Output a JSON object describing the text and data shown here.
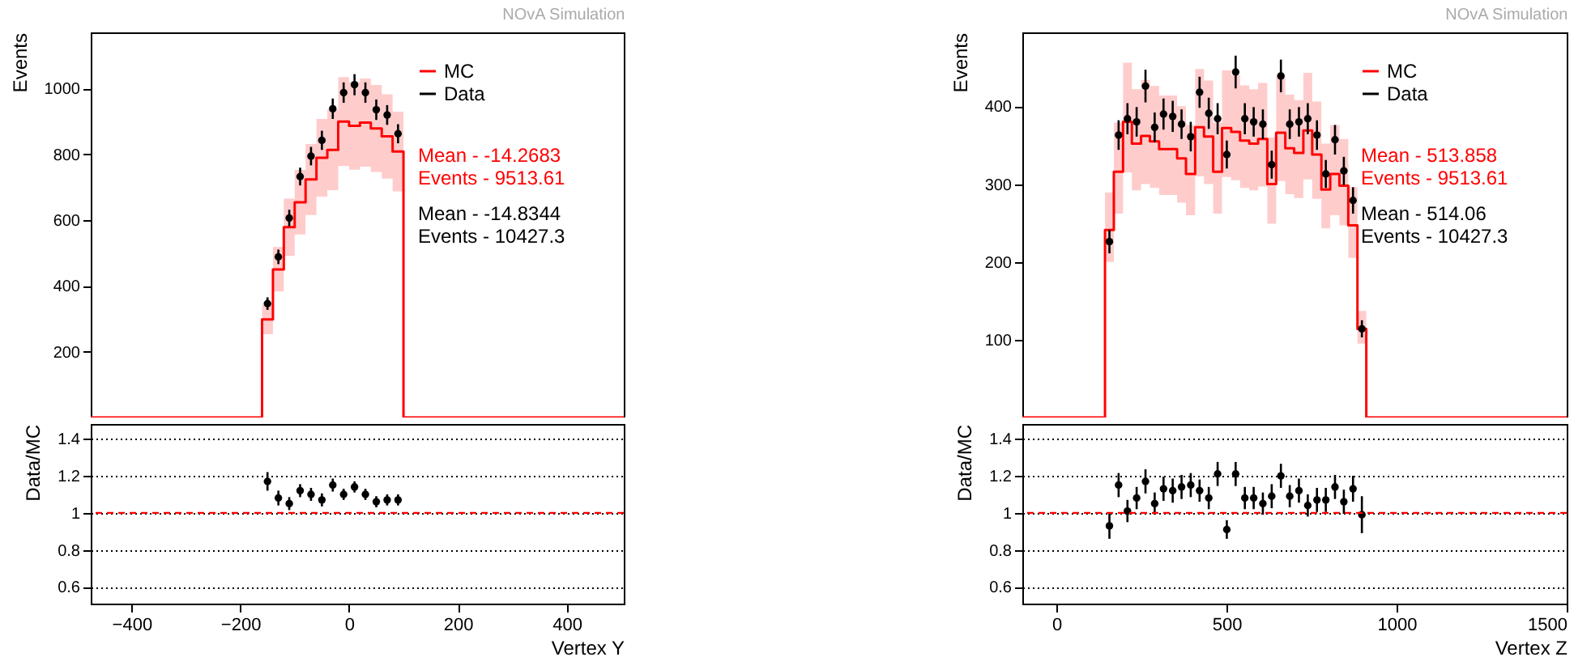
{
  "chart_data": [
    {
      "type": "step",
      "title": "NOvA Simulation",
      "ylabel": "Events",
      "xlim": [
        -475,
        505
      ],
      "xticks": [
        -400,
        -200,
        0,
        200,
        400
      ],
      "ylim": [
        0,
        1170
      ],
      "yticks": [
        200,
        400,
        600,
        800,
        1000
      ],
      "tick_labels": "y",
      "legend": "top right",
      "annotations": [
        "Mean - -14.2683",
        "Events - 9513.61",
        "Mean - -14.8344",
        "Events - 10427.3"
      ],
      "series": [
        {
          "name": "MC",
          "color": "#ff0000",
          "x": [
            -475,
            -160,
            -140,
            -120,
            -100,
            -80,
            -60,
            -40,
            -20,
            0,
            20,
            40,
            60,
            80,
            100,
            505
          ],
          "values": [
            0,
            298,
            450,
            578,
            654,
            723,
            789,
            813,
            899,
            886,
            896,
            878,
            854,
            808,
            0,
            0
          ],
          "lower": [
            0,
            253,
            383,
            491,
            556,
            615,
            671,
            691,
            764,
            753,
            762,
            746,
            726,
            687,
            0,
            0
          ],
          "upper": [
            0,
            343,
            518,
            665,
            752,
            831,
            907,
            935,
            1034,
            1019,
            1030,
            1010,
            982,
            929,
            0,
            0
          ]
        },
        {
          "name": "Data",
          "type": "scatter",
          "color": "#000000",
          "marker": "circle",
          "x": [
            -150,
            -130,
            -110,
            -90,
            -70,
            -50,
            -30,
            -10,
            10,
            30,
            50,
            70,
            90
          ],
          "values": [
            346,
            488,
            606,
            732,
            794,
            842,
            938,
            987,
            1011,
            987,
            935,
            919,
            862
          ],
          "errors": [
            19,
            22,
            25,
            27,
            28,
            29,
            31,
            31,
            32,
            31,
            31,
            30,
            29
          ]
        }
      ]
    },
    {
      "type": "scatter",
      "xlabel": "Vertex Y",
      "ylabel": "Data/MC",
      "xlim": [
        -475,
        505
      ],
      "xticks": [
        -400,
        -200,
        0,
        200,
        400
      ],
      "ylim": [
        0.51,
        1.48
      ],
      "yticks": [
        0.6,
        0.8,
        1,
        1.2,
        1.4
      ],
      "grid": "y",
      "ref_lines": [
        {
          "axis": "y",
          "value": 1,
          "color": "#ff0000",
          "line_style": "dashed"
        }
      ],
      "series": [
        {
          "color": "#000000",
          "marker": "circle",
          "x": [
            -150,
            -130,
            -110,
            -90,
            -70,
            -50,
            -30,
            -10,
            10,
            30,
            50,
            70,
            90
          ],
          "values": [
            1.17,
            1.08,
            1.05,
            1.12,
            1.1,
            1.07,
            1.15,
            1.1,
            1.14,
            1.1,
            1.06,
            1.07,
            1.07
          ],
          "errors": [
            0.05,
            0.04,
            0.035,
            0.035,
            0.035,
            0.035,
            0.035,
            0.03,
            0.03,
            0.03,
            0.03,
            0.03,
            0.03
          ]
        }
      ]
    },
    {
      "type": "step",
      "title": "NOvA Simulation",
      "ylabel": "Events",
      "xlim": [
        -100,
        1500
      ],
      "xticks": [
        0,
        500,
        1000,
        1500
      ],
      "ylim": [
        0,
        495
      ],
      "yticks": [
        100,
        200,
        300,
        400
      ],
      "tick_labels": "y",
      "legend": "top right",
      "annotations": [
        "Mean - 513.858",
        "Events - 9513.61",
        "Mean - 514.06",
        "Events - 10427.3"
      ],
      "series": [
        {
          "name": "MC",
          "color": "#ff0000",
          "x": [
            -100,
            143,
            169,
            196,
            222,
            249,
            275,
            302,
            328,
            355,
            381,
            408,
            434,
            461,
            487,
            514,
            540,
            567,
            593,
            620,
            646,
            673,
            699,
            726,
            752,
            779,
            805,
            832,
            858,
            885,
            911,
            1500
          ],
          "values": [
            0,
            241,
            316,
            380,
            352,
            362,
            355,
            345,
            345,
            333,
            313,
            373,
            361,
            316,
            372,
            367,
            356,
            352,
            358,
            300,
            366,
            346,
            340,
            369,
            338,
            293,
            313,
            298,
            247,
            114,
            0,
            0
          ],
          "lower": [
            0,
            200,
            262,
            315,
            292,
            300,
            295,
            286,
            286,
            276,
            260,
            310,
            300,
            262,
            309,
            305,
            295,
            292,
            297,
            249,
            304,
            287,
            282,
            306,
            281,
            243,
            260,
            247,
            205,
            95,
            0,
            0
          ],
          "upper": [
            0,
            289,
            379,
            456,
            422,
            434,
            426,
            414,
            414,
            400,
            376,
            448,
            433,
            379,
            446,
            440,
            427,
            422,
            430,
            360,
            439,
            415,
            408,
            443,
            406,
            352,
            376,
            358,
            296,
            137,
            0,
            0
          ]
        },
        {
          "name": "Data",
          "type": "scatter",
          "color": "#000000",
          "marker": "circle",
          "x": [
            156,
            183,
            209,
            236,
            262,
            289,
            315,
            342,
            368,
            395,
            421,
            448,
            474,
            501,
            527,
            554,
            580,
            607,
            633,
            660,
            686,
            713,
            739,
            766,
            792,
            819,
            845,
            872,
            898
          ],
          "values": [
            226,
            363,
            384,
            380,
            426,
            373,
            390,
            387,
            377,
            361,
            418,
            391,
            384,
            338,
            444,
            384,
            380,
            377,
            325,
            439,
            377,
            380,
            384,
            363,
            313,
            357,
            317,
            279,
            114
          ],
          "errors": [
            15,
            19,
            20,
            19,
            21,
            19,
            20,
            20,
            19,
            19,
            20,
            20,
            20,
            18,
            21,
            20,
            19,
            19,
            18,
            21,
            19,
            19,
            20,
            19,
            18,
            19,
            18,
            17,
            11
          ]
        }
      ]
    },
    {
      "type": "scatter",
      "xlabel": "Vertex Z",
      "ylabel": "Data/MC",
      "xlim": [
        -100,
        1500
      ],
      "xticks": [
        0,
        500,
        1000,
        1500
      ],
      "ylim": [
        0.51,
        1.48
      ],
      "yticks": [
        0.6,
        0.8,
        1,
        1.2,
        1.4
      ],
      "grid": "y",
      "ref_lines": [
        {
          "axis": "y",
          "value": 1,
          "color": "#ff0000",
          "line_style": "dashed"
        }
      ],
      "series": [
        {
          "color": "#000000",
          "marker": "circle",
          "x": [
            156,
            183,
            209,
            236,
            262,
            289,
            315,
            342,
            368,
            395,
            421,
            448,
            474,
            501,
            527,
            554,
            580,
            607,
            633,
            660,
            686,
            713,
            739,
            766,
            792,
            819,
            845,
            872,
            898
          ],
          "values": [
            0.93,
            1.15,
            1.01,
            1.08,
            1.17,
            1.05,
            1.13,
            1.12,
            1.14,
            1.15,
            1.12,
            1.08,
            1.21,
            0.91,
            1.21,
            1.08,
            1.08,
            1.05,
            1.09,
            1.2,
            1.09,
            1.12,
            1.04,
            1.07,
            1.07,
            1.14,
            1.06,
            1.13,
            0.99
          ],
          "errors": [
            0.07,
            0.065,
            0.06,
            0.06,
            0.065,
            0.06,
            0.065,
            0.065,
            0.065,
            0.065,
            0.06,
            0.06,
            0.065,
            0.05,
            0.065,
            0.06,
            0.06,
            0.06,
            0.065,
            0.065,
            0.06,
            0.065,
            0.06,
            0.065,
            0.065,
            0.065,
            0.065,
            0.07,
            0.1
          ]
        }
      ]
    }
  ]
}
